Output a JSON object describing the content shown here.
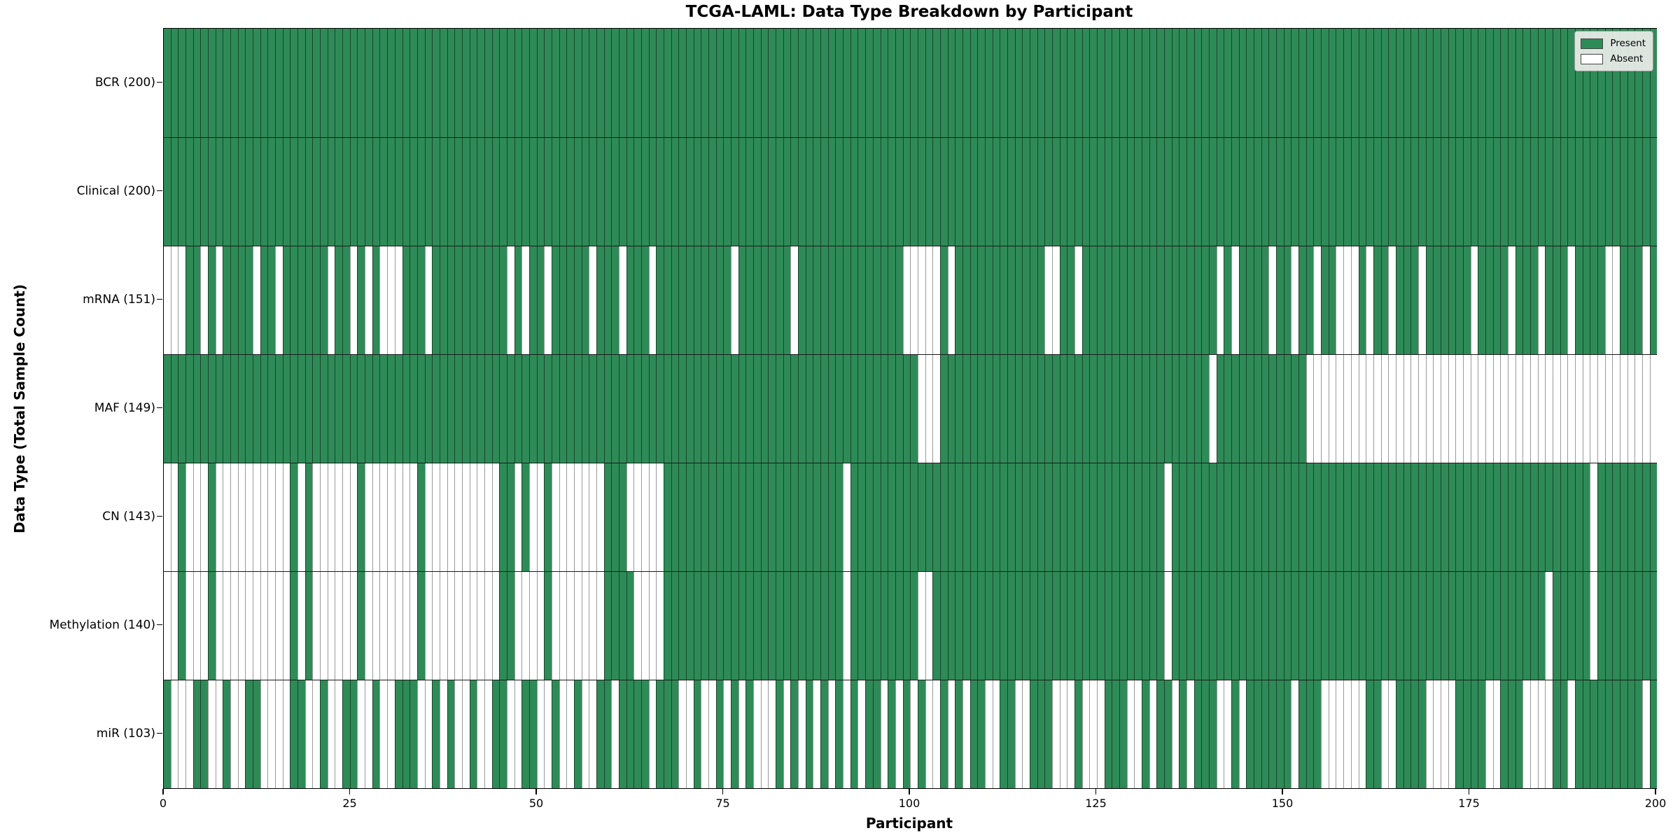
{
  "title": "TCGA-LAML: Data Type Breakdown by Participant",
  "x_axis_label": "Participant",
  "y_axis_label": "Data Type (Total Sample Count)",
  "legend": {
    "present_label": "Present",
    "absent_label": "Absent"
  },
  "colors": {
    "present": "#2e8b57",
    "absent": "#ffffff",
    "grid_on_present": "rgba(0,0,0,0.5)",
    "grid_on_absent": "#9a9a9a"
  },
  "chart_data": {
    "type": "heatmap",
    "x": {
      "label": "Participant",
      "min": 0,
      "max": 200,
      "ticks": [
        0,
        25,
        50,
        75,
        100,
        125,
        150,
        175,
        200
      ]
    },
    "n_participants": 200,
    "legend_position": "upper right",
    "rows": [
      {
        "label": "BCR (200)",
        "name": "BCR",
        "present_total": 200,
        "absent": []
      },
      {
        "label": "Clinical (200)",
        "name": "Clinical",
        "present_total": 200,
        "absent": []
      },
      {
        "label": "mRNA (151)",
        "name": "mRNA",
        "present_total": 151,
        "absent": [
          0,
          1,
          2,
          5,
          7,
          12,
          15,
          22,
          25,
          27,
          29,
          30,
          31,
          35,
          46,
          48,
          51,
          57,
          61,
          65,
          76,
          84,
          99,
          100,
          101,
          102,
          103,
          105,
          118,
          119,
          122,
          141,
          143,
          148,
          151,
          154,
          157,
          158,
          159,
          161,
          164,
          168,
          175,
          180,
          184,
          188,
          193,
          194,
          198
        ]
      },
      {
        "label": "MAF (149)",
        "name": "MAF",
        "present_total": 149,
        "absent": [
          101,
          102,
          103,
          140,
          153,
          154,
          155,
          156,
          157,
          158,
          159,
          160,
          161,
          162,
          163,
          164,
          165,
          166,
          167,
          168,
          169,
          170,
          171,
          172,
          173,
          174,
          175,
          176,
          177,
          178,
          179,
          180,
          181,
          182,
          183,
          184,
          185,
          186,
          187,
          188,
          189,
          190,
          191,
          192,
          193,
          194,
          195,
          196,
          197,
          198,
          199
        ]
      },
      {
        "label": "CN (143)",
        "name": "CN",
        "present_total": 143,
        "absent": [
          0,
          1,
          3,
          4,
          5,
          7,
          8,
          9,
          10,
          11,
          12,
          13,
          14,
          15,
          16,
          18,
          20,
          21,
          22,
          23,
          24,
          25,
          27,
          28,
          29,
          30,
          31,
          32,
          33,
          35,
          36,
          37,
          38,
          39,
          40,
          41,
          42,
          43,
          44,
          47,
          49,
          50,
          52,
          53,
          54,
          55,
          56,
          57,
          58,
          62,
          63,
          64,
          65,
          66,
          91,
          134,
          191
        ]
      },
      {
        "label": "Methylation (140)",
        "name": "Methylation",
        "present_total": 140,
        "absent": [
          0,
          1,
          3,
          4,
          5,
          7,
          8,
          9,
          10,
          11,
          12,
          13,
          14,
          15,
          16,
          18,
          20,
          21,
          22,
          23,
          24,
          25,
          27,
          28,
          29,
          30,
          31,
          32,
          33,
          35,
          36,
          37,
          38,
          39,
          40,
          41,
          42,
          43,
          44,
          47,
          48,
          49,
          50,
          52,
          53,
          54,
          55,
          56,
          57,
          58,
          63,
          64,
          65,
          66,
          91,
          101,
          102,
          134,
          185,
          191
        ]
      },
      {
        "label": "miR (103)",
        "name": "miR",
        "present_total": 103,
        "absent": [
          1,
          2,
          3,
          6,
          7,
          9,
          10,
          13,
          14,
          15,
          16,
          19,
          20,
          22,
          23,
          26,
          27,
          29,
          30,
          34,
          35,
          37,
          39,
          40,
          42,
          43,
          46,
          47,
          50,
          51,
          53,
          54,
          56,
          57,
          60,
          65,
          69,
          70,
          72,
          73,
          75,
          77,
          79,
          80,
          81,
          83,
          85,
          87,
          89,
          91,
          93,
          96,
          98,
          100,
          102,
          103,
          105,
          107,
          110,
          111,
          114,
          115,
          119,
          120,
          121,
          123,
          124,
          125,
          129,
          130,
          132,
          135,
          137,
          141,
          142,
          144,
          151,
          155,
          156,
          157,
          158,
          159,
          160,
          163,
          164,
          169,
          170,
          171,
          172,
          177,
          178,
          182,
          183,
          184,
          185,
          188,
          198
        ]
      }
    ]
  }
}
